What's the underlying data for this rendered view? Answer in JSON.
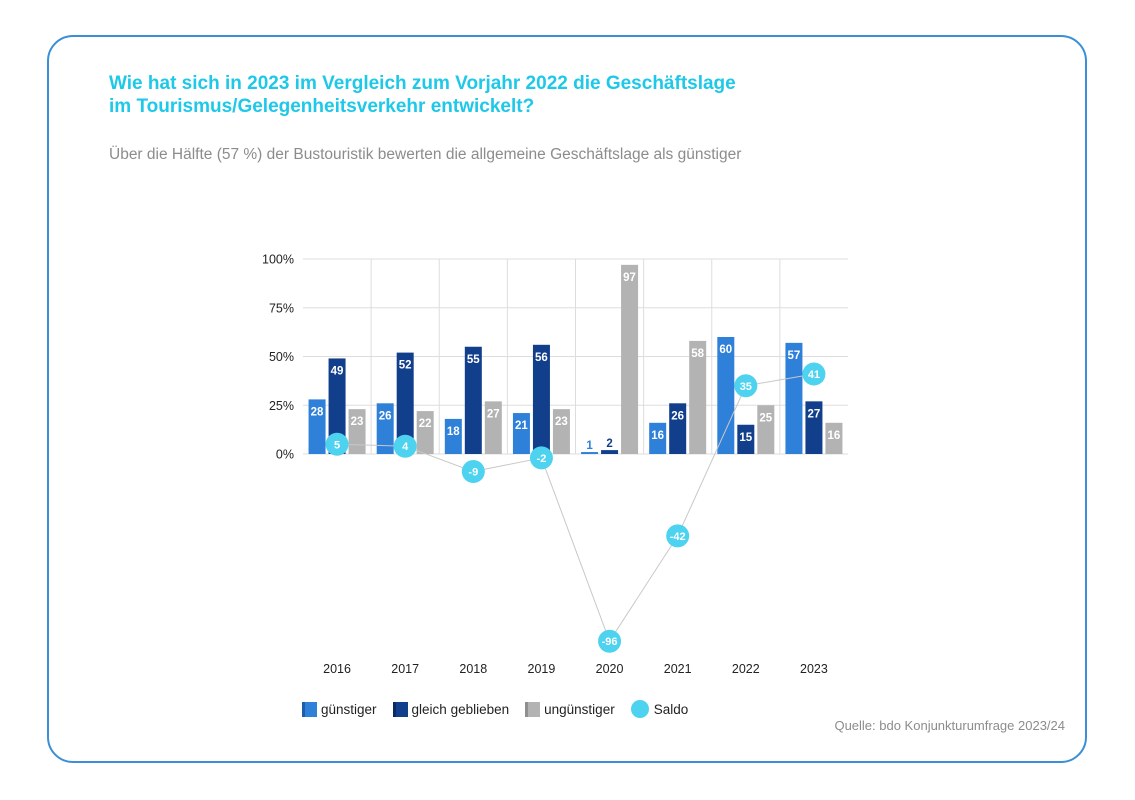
{
  "header": {
    "title_line1": "Wie hat sich in 2023 im Vergleich zum Vorjahr 2022 die Geschäftslage",
    "title_line2": "im Tourismus/Gelegenheitsverkehr entwickelt?",
    "subtitle": "Über die Hälfte (57 %) der Bustouristik bewerten die allgemeine Geschäftslage als günstiger"
  },
  "source": "Quelle: bdo Konjunkturumfrage 2023/24",
  "colors": {
    "guenstiger": "#2f80d8",
    "gleich": "#123f8c",
    "unguenstiger": "#b3b3b3",
    "saldo": "#4dd2f0",
    "grid": "#dddddd",
    "line": "#c8c8c8"
  },
  "chart_data": {
    "type": "bar",
    "categories": [
      "2016",
      "2017",
      "2018",
      "2019",
      "2020",
      "2021",
      "2022",
      "2023"
    ],
    "ylim": [
      -100,
      100
    ],
    "y_ticks": [
      "0%",
      "25%",
      "50%",
      "75%",
      "100%"
    ],
    "grid": true,
    "legend_position": "bottom",
    "series": [
      {
        "name": "günstiger",
        "values": [
          28,
          26,
          18,
          21,
          1,
          16,
          60,
          57
        ]
      },
      {
        "name": "gleich geblieben",
        "values": [
          49,
          52,
          55,
          56,
          2,
          26,
          15,
          27
        ]
      },
      {
        "name": "ungünstiger",
        "values": [
          23,
          22,
          27,
          23,
          97,
          58,
          25,
          16
        ]
      },
      {
        "name": "Saldo",
        "type": "line",
        "values": [
          5,
          4,
          -9,
          -2,
          -96,
          -42,
          35,
          41
        ]
      }
    ]
  }
}
